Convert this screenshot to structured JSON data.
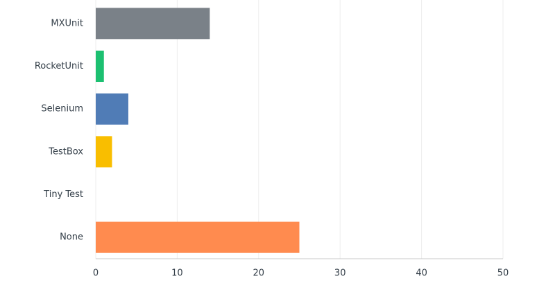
{
  "chart_data": {
    "type": "hbar",
    "categories": [
      "MXUnit",
      "RocketUnit",
      "Selenium",
      "TestBox",
      "Tiny Test",
      "None"
    ],
    "values": [
      14,
      1,
      4,
      2,
      0,
      25
    ],
    "colors": [
      "#7a8188",
      "#1cc071",
      "#507cb6",
      "#f9be00",
      "#6bc8cd",
      "#ff8b4f"
    ],
    "xlim": [
      0,
      50
    ],
    "xticks": [
      0,
      10,
      20,
      30,
      40,
      50
    ],
    "grid": true
  }
}
